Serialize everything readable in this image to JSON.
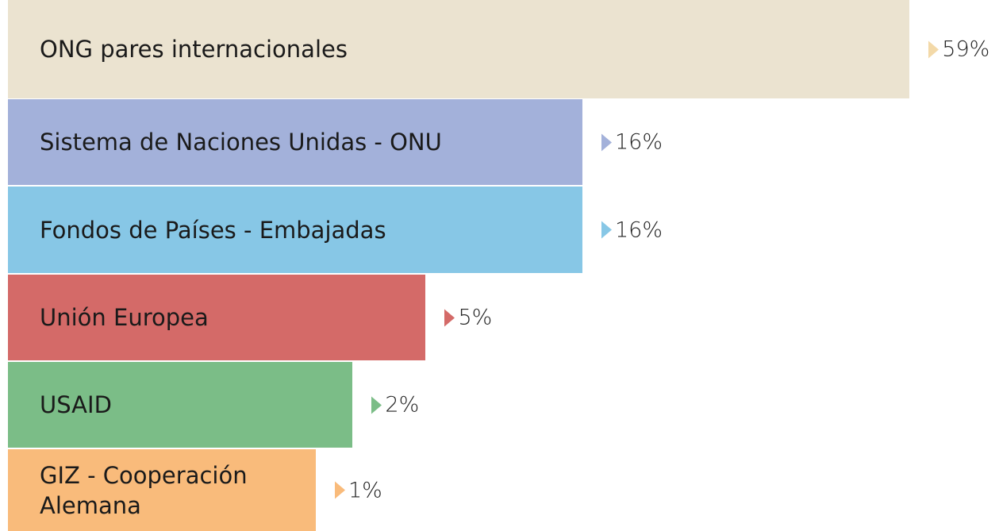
{
  "chart_data": {
    "type": "bar",
    "categories": [
      "ONG pares internacionales",
      "Sistema de Naciones Unidas - ONU",
      "Fondos de Países  - Embajadas",
      "Unión Europea",
      "USAID",
      "GIZ - Cooperación Alemana"
    ],
    "values": [
      59,
      16,
      16,
      5,
      2,
      1
    ],
    "value_labels": [
      "59%",
      "16%",
      "16%",
      "5%",
      "2%",
      "1%"
    ],
    "colors": [
      "#ebe3d0",
      "#a3b1da",
      "#87c7e6",
      "#d46a68",
      "#7bbd87",
      "#f9bb7b"
    ],
    "marker_colors": [
      "#f3d9a8",
      "#a3b1da",
      "#87c7e6",
      "#d46a68",
      "#7bbd87",
      "#f9bb7b"
    ]
  }
}
